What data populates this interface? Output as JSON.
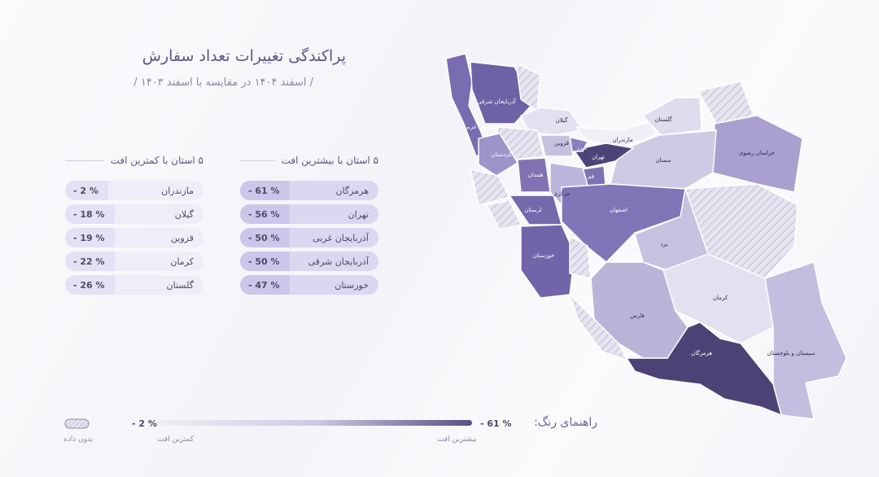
{
  "header": {
    "title": "پراکندگی تغییرات تعداد سفارش",
    "subtitle": "/ اسفند ۱۴۰۴ در مقایسه با اسفند ۱۴۰۳ /"
  },
  "most_decline": {
    "heading": "۵ استان با بیشترین افت",
    "rows": [
      [
        "هرمزگان",
        "- 61 %"
      ],
      [
        "تهران",
        "- 56 %"
      ],
      [
        "آذربایجان غربی",
        "- 50 %"
      ],
      [
        "آذربایجان شرقی",
        "- 50 %"
      ],
      [
        "خوزستان",
        "- 47 %"
      ]
    ]
  },
  "least_decline": {
    "heading": "۵ استان با کمترین افت",
    "rows": [
      [
        "مازندران",
        "- 2 %"
      ],
      [
        "گیلان",
        "- 18 %"
      ],
      [
        "قزوین",
        "- 19 %"
      ],
      [
        "کرمان",
        "- 22 %"
      ],
      [
        "گلستان",
        "- 26 %"
      ]
    ]
  },
  "legend": {
    "title": "راهنمای رنگ:",
    "max": "- 61 %",
    "min": "- 2 %",
    "max_label": "بیشترین افت",
    "min_label": "کمترین افت",
    "no_data": "بدون داده"
  },
  "map": {
    "labels": [
      "آذربایجان شرقی",
      "آذربایجان غربی",
      "گیلان",
      "مازندران",
      "گلستان",
      "خراسان رضوی",
      "سمنان",
      "البرز",
      "تهران",
      "قزوین",
      "کردستان",
      "همدان",
      "قم",
      "مرکزی",
      "لرستان",
      "اصفهان",
      "خوزستان",
      "یزد",
      "کرمان",
      "فارس",
      "هرمزگان",
      "سیستان و بلوچستان"
    ]
  }
}
